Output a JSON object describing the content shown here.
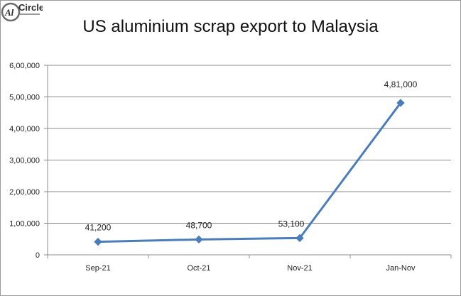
{
  "chart_data": {
    "type": "line",
    "title": "US aluminium scrap export to Malaysia",
    "categories": [
      "Sep-21",
      "Oct-21",
      "Nov-21",
      "Jan-Nov"
    ],
    "values": [
      41200,
      48700,
      53100,
      481000
    ],
    "data_labels": [
      "41,200",
      "48,700",
      "53,100",
      "4,81,000"
    ],
    "yticks": [
      0,
      100000,
      200000,
      300000,
      400000,
      500000,
      600000
    ],
    "ytick_labels": [
      "0",
      "1,00,000",
      "2,00,000",
      "3,00,000",
      "4,00,000",
      "5,00,000",
      "6,00,000"
    ],
    "ylim": [
      0,
      600000
    ],
    "grid": true,
    "xlabel": "",
    "ylabel": "",
    "line_color": "#4a7ebb",
    "grid_color": "#8c8c8c"
  },
  "logo": {
    "text": "AlCircle",
    "brand_color": "#6a6a6a"
  }
}
